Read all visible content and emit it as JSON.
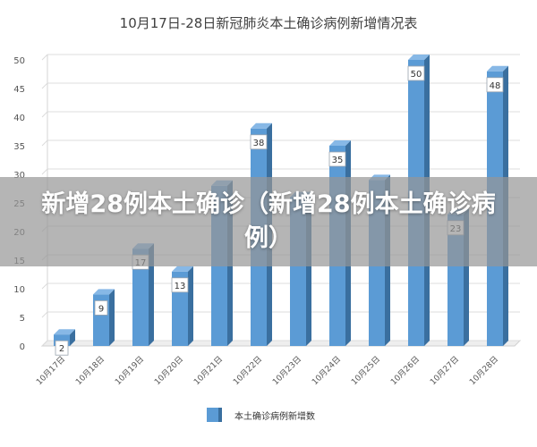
{
  "chart_data": {
    "type": "bar",
    "title": "10月17日-28日新冠肺炎本土确诊病例新增情况表",
    "categories": [
      "10月17日",
      "10月18日",
      "10月19日",
      "10月20日",
      "10月21日",
      "10月22日",
      "10月23日",
      "10月24日",
      "10月25日",
      "10月26日",
      "10月27日",
      "10月28日"
    ],
    "series": [
      {
        "name": "本土确诊病例新增数",
        "values": [
          2,
          9,
          17,
          13,
          28,
          38,
          26,
          35,
          29,
          50,
          23,
          48
        ]
      }
    ],
    "visible_data_labels": [
      true,
      true,
      true,
      true,
      false,
      true,
      false,
      true,
      false,
      true,
      true,
      true
    ],
    "ylim": [
      0,
      50
    ],
    "yticks": [
      0,
      5,
      10,
      15,
      20,
      25,
      30,
      35,
      40,
      45,
      50
    ],
    "grid": true,
    "legend_position": "bottom-center",
    "bar_color": "#5b9bd5",
    "bar_side_color": "#3a6f9f",
    "bar_top_color": "#87b8e6"
  },
  "overlay": {
    "headline": "新增28例本土确诊（新增28例本土确诊病例）"
  }
}
